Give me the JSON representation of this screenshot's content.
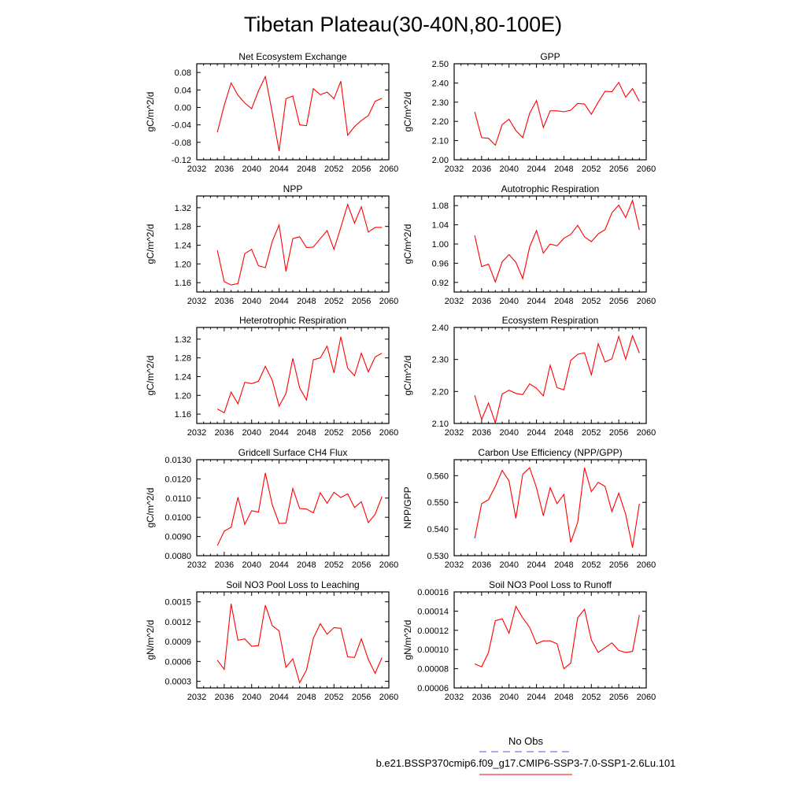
{
  "title": "Tibetan Plateau(30-40N,80-100E)",
  "legend": {
    "entries": [
      {
        "label": "No Obs",
        "color": "#5555dd",
        "style": "dashed"
      },
      {
        "label": "b.e21.BSSP370cmip6.f09_g17.CMIP6-SSP3-7.0-SSP1-2.6Lu.101",
        "color": "#ff0000",
        "style": "solid"
      }
    ]
  },
  "chart_data": [
    {
      "type": "line",
      "title": "Net Ecosystem Exchange",
      "ylabel": "gC/m^2/d",
      "xlim": [
        2032,
        2060
      ],
      "ylim": [
        -0.12,
        0.1
      ],
      "xticks": [
        "2032",
        "2036",
        "2040",
        "2044",
        "2048",
        "2052",
        "2056",
        "2060"
      ],
      "yticks": [
        "-0.12",
        "-0.08",
        "-0.04",
        "0.00",
        "0.04",
        "0.08"
      ],
      "series": [
        {
          "color": "#ff0000",
          "x": [
            2035,
            2036,
            2037,
            2038,
            2039,
            2040,
            2041,
            2042,
            2043,
            2044,
            2045,
            2046,
            2047,
            2048,
            2049,
            2050,
            2051,
            2052,
            2053,
            2054,
            2055,
            2056,
            2057,
            2058,
            2059
          ],
          "values": [
            -0.057,
            0.005,
            0.056,
            0.028,
            0.01,
            -0.003,
            0.038,
            0.071,
            -0.012,
            -0.1,
            0.02,
            0.026,
            -0.04,
            -0.042,
            0.043,
            0.029,
            0.035,
            0.02,
            0.06,
            -0.064,
            -0.044,
            -0.03,
            -0.019,
            0.014,
            0.021
          ]
        }
      ]
    },
    {
      "type": "line",
      "title": "GPP",
      "ylabel": "gC/m^2/d",
      "xlim": [
        2032,
        2060
      ],
      "ylim": [
        2.0,
        2.5
      ],
      "xticks": [
        "2032",
        "2036",
        "2040",
        "2044",
        "2048",
        "2052",
        "2056",
        "2060"
      ],
      "yticks": [
        "2.00",
        "2.10",
        "2.20",
        "2.30",
        "2.40",
        "2.50"
      ],
      "series": [
        {
          "color": "#ff0000",
          "x": [
            2035,
            2036,
            2037,
            2038,
            2039,
            2040,
            2041,
            2042,
            2043,
            2044,
            2045,
            2046,
            2047,
            2048,
            2049,
            2050,
            2051,
            2052,
            2053,
            2054,
            2055,
            2056,
            2057,
            2058,
            2059
          ],
          "values": [
            2.25,
            2.115,
            2.112,
            2.076,
            2.183,
            2.211,
            2.152,
            2.115,
            2.242,
            2.308,
            2.168,
            2.255,
            2.255,
            2.25,
            2.258,
            2.293,
            2.29,
            2.237,
            2.3,
            2.357,
            2.354,
            2.403,
            2.326,
            2.371,
            2.304
          ]
        }
      ]
    },
    {
      "type": "line",
      "title": "NPP",
      "ylabel": "gC/m^2/d",
      "xlim": [
        2032,
        2060
      ],
      "ylim": [
        1.14,
        1.345
      ],
      "xticks": [
        "2032",
        "2036",
        "2040",
        "2044",
        "2048",
        "2052",
        "2056",
        "2060"
      ],
      "yticks": [
        "1.16",
        "1.20",
        "1.24",
        "1.28",
        "1.32"
      ],
      "series": [
        {
          "color": "#ff0000",
          "x": [
            2035,
            2036,
            2037,
            2038,
            2039,
            2040,
            2041,
            2042,
            2043,
            2044,
            2045,
            2046,
            2047,
            2048,
            2049,
            2050,
            2051,
            2052,
            2053,
            2054,
            2055,
            2056,
            2057,
            2058,
            2059
          ],
          "values": [
            1.229,
            1.162,
            1.155,
            1.158,
            1.222,
            1.231,
            1.196,
            1.192,
            1.248,
            1.283,
            1.184,
            1.254,
            1.258,
            1.235,
            1.236,
            1.254,
            1.271,
            1.231,
            1.278,
            1.327,
            1.287,
            1.322,
            1.268,
            1.278,
            1.278
          ]
        }
      ]
    },
    {
      "type": "line",
      "title": "Autotrophic Respiration",
      "ylabel": "gC/m^2/d",
      "xlim": [
        2032,
        2060
      ],
      "ylim": [
        0.9,
        1.1
      ],
      "xticks": [
        "2032",
        "2036",
        "2040",
        "2044",
        "2048",
        "2052",
        "2056",
        "2060"
      ],
      "yticks": [
        "0.92",
        "0.96",
        "1.00",
        "1.04",
        "1.08"
      ],
      "series": [
        {
          "color": "#ff0000",
          "x": [
            2035,
            2036,
            2037,
            2038,
            2039,
            2040,
            2041,
            2042,
            2043,
            2044,
            2045,
            2046,
            2047,
            2048,
            2049,
            2050,
            2051,
            2052,
            2053,
            2054,
            2055,
            2056,
            2057,
            2058,
            2059
          ],
          "values": [
            1.018,
            0.953,
            0.958,
            0.921,
            0.963,
            0.978,
            0.962,
            0.928,
            0.994,
            1.028,
            0.981,
            1.0,
            0.996,
            1.012,
            1.02,
            1.039,
            1.015,
            1.005,
            1.021,
            1.03,
            1.065,
            1.081,
            1.055,
            1.091,
            1.029
          ]
        }
      ]
    },
    {
      "type": "line",
      "title": "Heterotrophic Respiration",
      "ylabel": "gC/m^2/d",
      "xlim": [
        2032,
        2060
      ],
      "ylim": [
        1.14,
        1.345
      ],
      "xticks": [
        "2032",
        "2036",
        "2040",
        "2044",
        "2048",
        "2052",
        "2056",
        "2060"
      ],
      "yticks": [
        "1.16",
        "1.20",
        "1.24",
        "1.28",
        "1.32"
      ],
      "series": [
        {
          "color": "#ff0000",
          "x": [
            2035,
            2036,
            2037,
            2038,
            2039,
            2040,
            2041,
            2042,
            2043,
            2044,
            2045,
            2046,
            2047,
            2048,
            2049,
            2050,
            2051,
            2052,
            2053,
            2054,
            2055,
            2056,
            2057,
            2058,
            2059
          ],
          "values": [
            1.171,
            1.163,
            1.207,
            1.182,
            1.228,
            1.225,
            1.23,
            1.262,
            1.232,
            1.177,
            1.204,
            1.279,
            1.216,
            1.19,
            1.276,
            1.28,
            1.305,
            1.248,
            1.325,
            1.258,
            1.242,
            1.29,
            1.25,
            1.282,
            1.29
          ]
        }
      ]
    },
    {
      "type": "line",
      "title": "Ecosystem Respiration",
      "ylabel": "gC/m^2/d",
      "xlim": [
        2032,
        2060
      ],
      "ylim": [
        2.1,
        2.4
      ],
      "xticks": [
        "2032",
        "2036",
        "2040",
        "2044",
        "2048",
        "2052",
        "2056",
        "2060"
      ],
      "yticks": [
        "2.10",
        "2.20",
        "2.30",
        "2.40"
      ],
      "series": [
        {
          "color": "#ff0000",
          "x": [
            2035,
            2036,
            2037,
            2038,
            2039,
            2040,
            2041,
            2042,
            2043,
            2044,
            2045,
            2046,
            2047,
            2048,
            2049,
            2050,
            2051,
            2052,
            2053,
            2054,
            2055,
            2056,
            2057,
            2058,
            2059
          ],
          "values": [
            2.188,
            2.112,
            2.164,
            2.102,
            2.192,
            2.204,
            2.194,
            2.19,
            2.224,
            2.21,
            2.186,
            2.282,
            2.212,
            2.205,
            2.297,
            2.316,
            2.321,
            2.252,
            2.349,
            2.292,
            2.302,
            2.372,
            2.301,
            2.374,
            2.32
          ]
        }
      ]
    },
    {
      "type": "line",
      "title": "Gridcell Surface CH4 Flux",
      "ylabel": "gC/m^2/d",
      "xlim": [
        2032,
        2060
      ],
      "ylim": [
        0.008,
        0.013
      ],
      "xticks": [
        "2032",
        "2036",
        "2040",
        "2044",
        "2048",
        "2052",
        "2056",
        "2060"
      ],
      "yticks": [
        "0.0080",
        "0.0090",
        "0.0100",
        "0.0110",
        "0.0120",
        "0.0130"
      ],
      "series": [
        {
          "color": "#ff0000",
          "x": [
            2035,
            2036,
            2037,
            2038,
            2039,
            2040,
            2041,
            2042,
            2043,
            2044,
            2045,
            2046,
            2047,
            2048,
            2049,
            2050,
            2051,
            2052,
            2053,
            2054,
            2055,
            2056,
            2057,
            2058,
            2059
          ],
          "values": [
            0.00852,
            0.00928,
            0.00948,
            0.01104,
            0.00963,
            0.01034,
            0.01027,
            0.01231,
            0.01065,
            0.00968,
            0.0097,
            0.0115,
            0.01046,
            0.01043,
            0.01023,
            0.01128,
            0.01073,
            0.0113,
            0.01103,
            0.01122,
            0.01051,
            0.01081,
            0.00972,
            0.01015,
            0.01108
          ]
        }
      ]
    },
    {
      "type": "line",
      "title": "Carbon Use Efficiency (NPP/GPP)",
      "ylabel": "NPP/GPP",
      "xlim": [
        2032,
        2060
      ],
      "ylim": [
        0.53,
        0.566
      ],
      "xticks": [
        "2032",
        "2036",
        "2040",
        "2044",
        "2048",
        "2052",
        "2056",
        "2060"
      ],
      "yticks": [
        "0.530",
        "0.540",
        "0.550",
        "0.560"
      ],
      "series": [
        {
          "color": "#ff0000",
          "x": [
            2035,
            2036,
            2037,
            2038,
            2039,
            2040,
            2041,
            2042,
            2043,
            2044,
            2045,
            2046,
            2047,
            2048,
            2049,
            2050,
            2051,
            2052,
            2053,
            2054,
            2055,
            2056,
            2057,
            2058,
            2059
          ],
          "values": [
            0.5365,
            0.5495,
            0.551,
            0.556,
            0.562,
            0.558,
            0.544,
            0.5605,
            0.563,
            0.5555,
            0.545,
            0.5555,
            0.5495,
            0.553,
            0.535,
            0.5425,
            0.563,
            0.554,
            0.5575,
            0.556,
            0.5465,
            0.5535,
            0.5455,
            0.533,
            0.5495
          ]
        }
      ]
    },
    {
      "type": "line",
      "title": "Soil NO3 Pool Loss to Leaching",
      "ylabel": "gN/m^2/d",
      "xlim": [
        2032,
        2060
      ],
      "ylim": [
        0.0002,
        0.00165
      ],
      "xticks": [
        "2032",
        "2036",
        "2040",
        "2044",
        "2048",
        "2052",
        "2056",
        "2060"
      ],
      "yticks": [
        "0.0003",
        "0.0006",
        "0.0009",
        "0.0012",
        "0.0015"
      ],
      "series": [
        {
          "color": "#ff0000",
          "x": [
            2035,
            2036,
            2037,
            2038,
            2039,
            2040,
            2041,
            2042,
            2043,
            2044,
            2045,
            2046,
            2047,
            2048,
            2049,
            2050,
            2051,
            2052,
            2053,
            2054,
            2055,
            2056,
            2057,
            2058,
            2059
          ],
          "values": [
            0.00062,
            0.00048,
            0.00147,
            0.00092,
            0.00094,
            0.00083,
            0.00084,
            0.00145,
            0.00114,
            0.00106,
            0.00051,
            0.00064,
            0.00028,
            0.00047,
            0.00095,
            0.00117,
            0.00101,
            0.00111,
            0.0011,
            0.00067,
            0.00066,
            0.00094,
            0.00063,
            0.00042,
            0.00066
          ]
        }
      ]
    },
    {
      "type": "line",
      "title": "Soil NO3 Pool Loss to Runoff",
      "ylabel": "gN/m^2/d",
      "xlim": [
        2032,
        2060
      ],
      "ylim": [
        6e-05,
        0.00016
      ],
      "xticks": [
        "2032",
        "2036",
        "2040",
        "2044",
        "2048",
        "2052",
        "2056",
        "2060"
      ],
      "yticks": [
        "0.00006",
        "0.00008",
        "0.00010",
        "0.00012",
        "0.00014",
        "0.00016"
      ],
      "series": [
        {
          "color": "#ff0000",
          "x": [
            2035,
            2036,
            2037,
            2038,
            2039,
            2040,
            2041,
            2042,
            2043,
            2044,
            2045,
            2046,
            2047,
            2048,
            2049,
            2050,
            2051,
            2052,
            2053,
            2054,
            2055,
            2056,
            2057,
            2058,
            2059
          ],
          "values": [
            8.5e-05,
            8.2e-05,
            9.7e-05,
            0.00013,
            0.000132,
            0.000117,
            0.000145,
            0.000133,
            0.000123,
            0.000106,
            0.000109,
            0.000109,
            0.000106,
            8e-05,
            8.6e-05,
            0.000133,
            0.000142,
            0.00011,
            9.7e-05,
            0.000102,
            0.000107,
            9.9e-05,
            9.7e-05,
            9.8e-05,
            0.000136
          ]
        }
      ]
    }
  ]
}
